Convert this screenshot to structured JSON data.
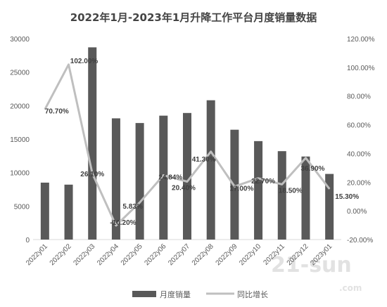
{
  "chart_data": {
    "type": "bar",
    "title": "2022年1月-2023年1月升降工作平台月度销量数据",
    "categories": [
      "2022y01",
      "2022y02",
      "2022y03",
      "2022y04",
      "2022y05",
      "2022y06",
      "2022y07",
      "2022y08",
      "2022y09",
      "2022y10",
      "2022y11",
      "2022y12",
      "2023y01"
    ],
    "series": [
      {
        "name": "月度销量",
        "type": "bar",
        "axis": "left",
        "color": "#595959",
        "values": [
          8500,
          8200,
          28700,
          18100,
          17400,
          18500,
          18900,
          20800,
          16400,
          14700,
          13200,
          12400,
          9800
        ]
      },
      {
        "name": "同比增长",
        "type": "line",
        "axis": "right",
        "color": "#bfbfbf",
        "values": [
          70.7,
          102.0,
          26.1,
          -10.2,
          5.83,
          24.84,
          20.4,
          41.3,
          17.0,
          22.7,
          18.5,
          36.9,
          15.3
        ],
        "labels": [
          "70.70%",
          "102.00%",
          "26.10%",
          "-10.20%",
          "5.83%",
          "24.84%",
          "20.40%",
          "41.30%",
          "17.00%",
          "22.70%",
          "18.50%",
          "36.90%",
          "15.30%"
        ]
      }
    ],
    "left_axis": {
      "min": 0,
      "max": 30000,
      "step": 5000,
      "tick_labels": [
        "0",
        "5000",
        "10000",
        "15000",
        "20000",
        "25000",
        "30000"
      ]
    },
    "right_axis": {
      "min": -20,
      "max": 120,
      "step": 20,
      "tick_labels": [
        "-20.00%",
        "0.00%",
        "20.00%",
        "40.00%",
        "60.00%",
        "80.00%",
        "100.00%",
        "120.00%"
      ]
    },
    "grid": false,
    "legend": {
      "placement": "bottom"
    }
  },
  "watermark": {
    "text": "21-sun",
    "sub": ".com"
  }
}
